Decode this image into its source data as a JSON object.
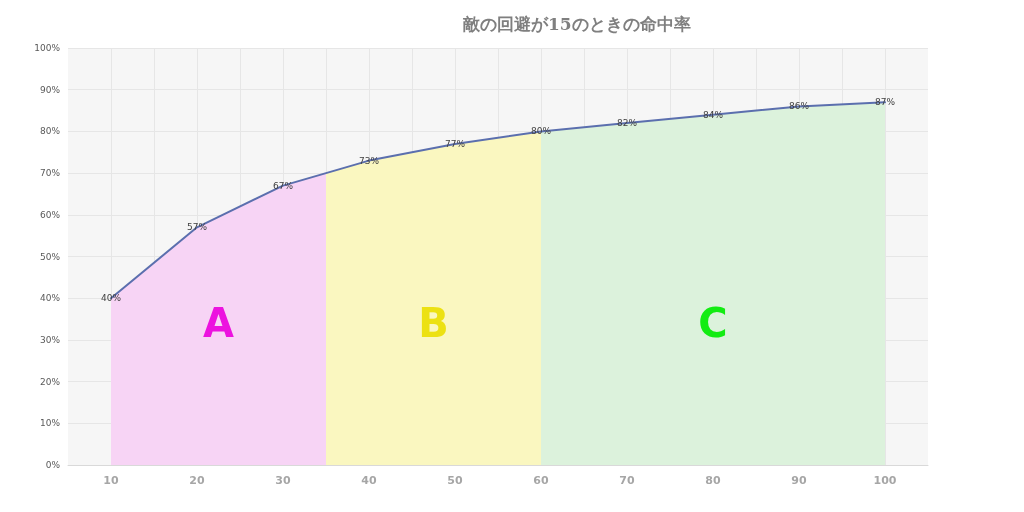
{
  "chart_data": {
    "type": "line",
    "title": "敵の回避が15のときの命中率",
    "x": [
      10,
      20,
      30,
      40,
      50,
      60,
      70,
      80,
      90,
      100
    ],
    "series": [
      {
        "color": "#5b6fae",
        "values": [
          40,
          57,
          67,
          73,
          77,
          80,
          82,
          84,
          86,
          87
        ],
        "value_labels": [
          "40%",
          "57%",
          "67%",
          "73%",
          "77%",
          "80%",
          "82%",
          "84%",
          "86%",
          "87%"
        ]
      },
      {
        "type": "area",
        "name": "A",
        "color": "#f7d4f5",
        "x": [
          10,
          20,
          30,
          35
        ],
        "values": [
          40,
          57,
          67,
          70
        ]
      },
      {
        "type": "area",
        "name": "B",
        "color": "#faf7c0",
        "x": [
          35,
          40,
          50,
          60
        ],
        "values": [
          70,
          73,
          77,
          80
        ]
      },
      {
        "type": "area",
        "name": "C",
        "color": "#dcf2dc",
        "x": [
          60,
          70,
          80,
          90,
          100
        ],
        "values": [
          80,
          82,
          84,
          86,
          87
        ]
      }
    ],
    "xlim": [
      5,
      105
    ],
    "xticks": [
      10,
      {
        "value": 15,
        "label": null
      },
      20,
      {
        "value": 25,
        "label": null
      },
      30,
      {
        "value": 35,
        "label": null
      },
      40,
      {
        "value": 45,
        "label": null
      },
      50,
      {
        "value": 55,
        "label": null
      },
      60,
      {
        "value": 65,
        "label": null
      },
      70,
      {
        "value": 75,
        "label": null
      },
      80,
      {
        "value": 85,
        "label": null
      },
      90,
      {
        "value": 95,
        "label": null
      },
      100
    ],
    "ylim": [
      0,
      100
    ],
    "yticks": [
      {
        "value": 0,
        "label": "0%"
      },
      {
        "value": 10,
        "label": "10%"
      },
      {
        "value": 20,
        "label": "20%"
      },
      {
        "value": 30,
        "label": "30%"
      },
      {
        "value": 40,
        "label": "40%"
      },
      {
        "value": 50,
        "label": "50%"
      },
      {
        "value": 60,
        "label": "60%"
      },
      {
        "value": 70,
        "label": "70%"
      },
      {
        "value": 80,
        "label": "80%"
      },
      {
        "value": 90,
        "label": "90%"
      },
      {
        "value": 100,
        "label": "100%"
      }
    ],
    "grid": true,
    "marker": "none",
    "line_style": "solid"
  }
}
